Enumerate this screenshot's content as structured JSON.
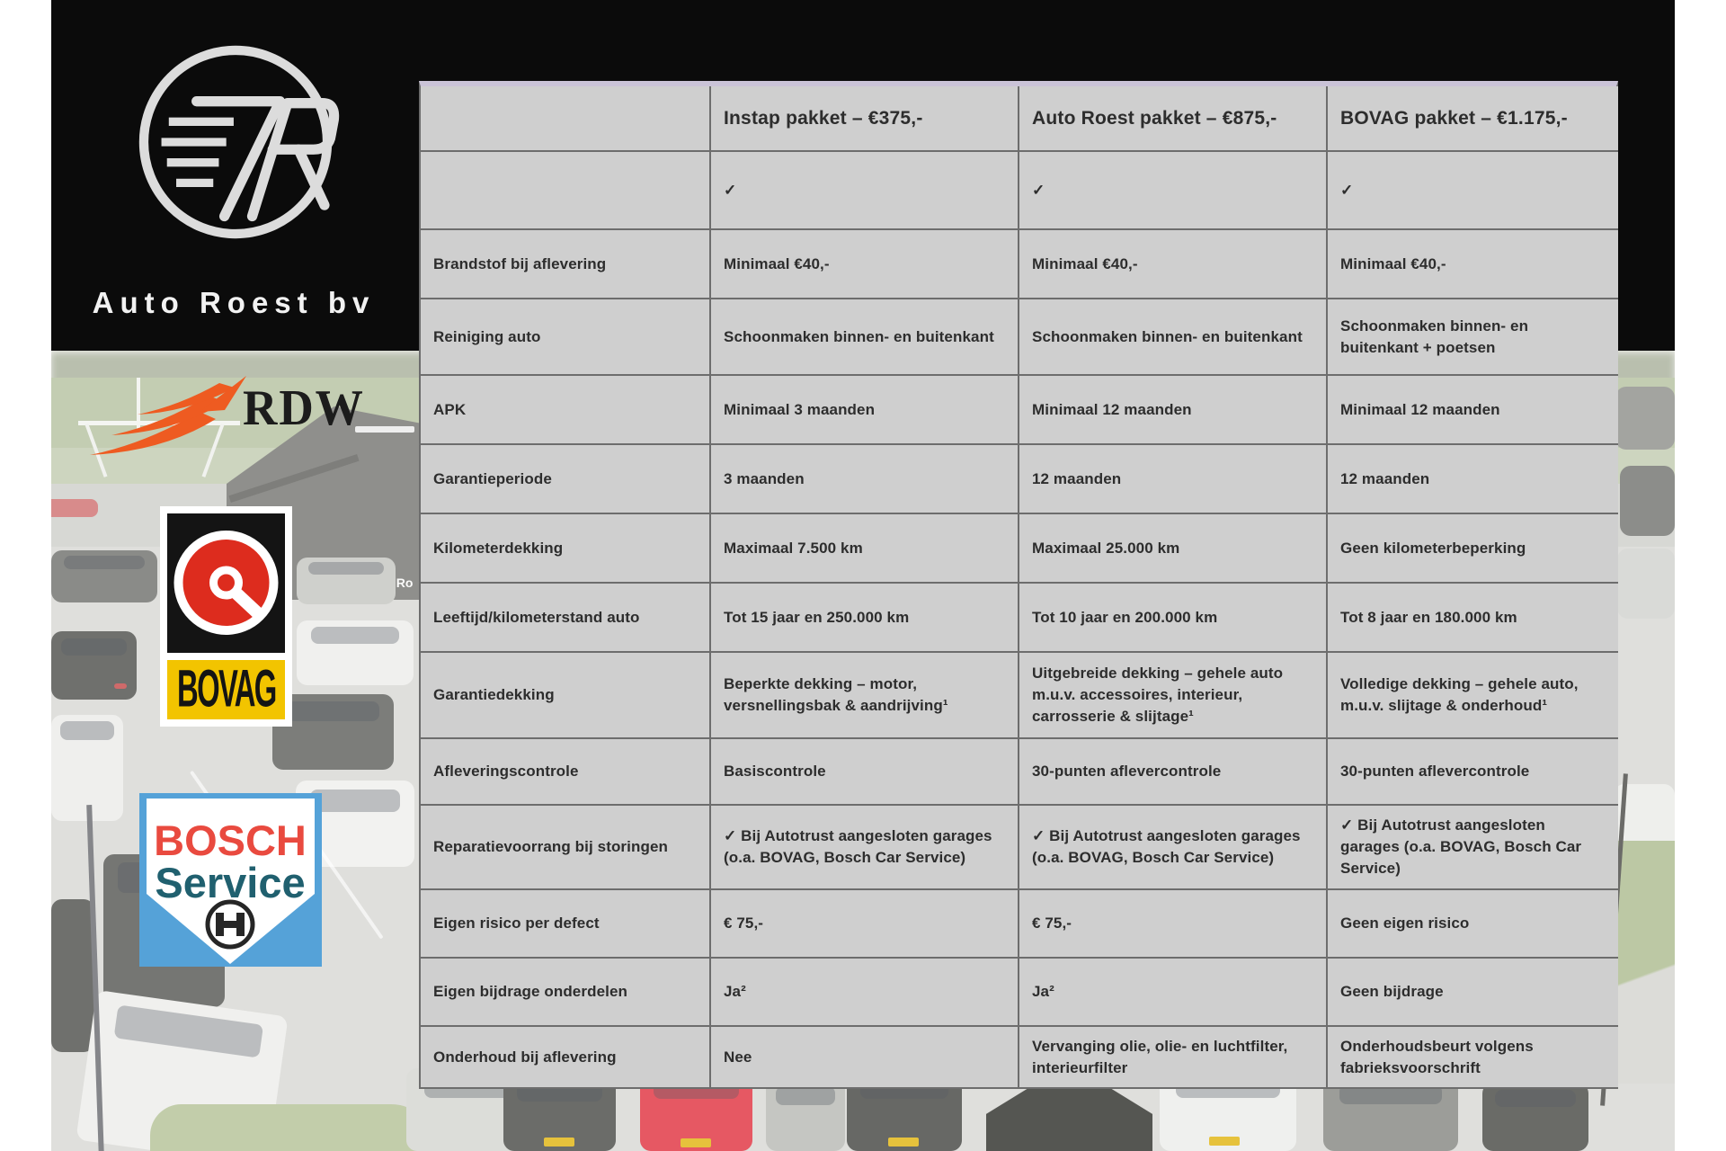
{
  "branding": {
    "auto_roest": {
      "name": "Auto Roest bv"
    },
    "rdw": {
      "label": "RDW",
      "orange": "#ee5b21"
    },
    "bovag": {
      "label": "BOVAG",
      "red": "#dd2c1e",
      "yellow": "#f2c400"
    },
    "bosch": {
      "line1": "BOSCH",
      "line2": "Service",
      "red": "#e94a3f",
      "teal": "#20606f",
      "blue": "#55a2d8"
    }
  },
  "background": {
    "building_sign": "Auto Ro"
  },
  "colors": {
    "table_cell_bg": "#cfcfcf",
    "table_border": "#6d6d6d",
    "table_top_tint": "#cac3d7",
    "table_text": "#2d2d2d",
    "masthead_black": "#0b0b0b"
  },
  "table": {
    "columns": [
      "",
      "Instap pakket – €375,-",
      "Auto Roest pakket – €875,-",
      "BOVAG pakket – €1.175,-"
    ],
    "rows": [
      {
        "label": "",
        "cells": [
          "✓",
          "✓",
          "✓"
        ]
      },
      {
        "label": "Brandstof bij aflevering",
        "cells": [
          "Minimaal €40,-",
          "Minimaal €40,-",
          "Minimaal €40,-"
        ]
      },
      {
        "label": "Reiniging auto",
        "cells": [
          "Schoonmaken binnen- en buitenkant",
          "Schoonmaken binnen- en buitenkant",
          "Schoonmaken binnen- en buitenkant + poetsen"
        ]
      },
      {
        "label": "APK",
        "cells": [
          "Minimaal 3 maanden",
          "Minimaal 12 maanden",
          "Minimaal 12 maanden"
        ]
      },
      {
        "label": "Garantieperiode",
        "cells": [
          "3 maanden",
          "12 maanden",
          "12 maanden"
        ]
      },
      {
        "label": "Kilometerdekking",
        "cells": [
          "Maximaal 7.500 km",
          "Maximaal 25.000 km",
          "Geen kilometerbeperking"
        ]
      },
      {
        "label": "Leeftijd/kilometerstand auto",
        "cells": [
          "Tot 15 jaar en 250.000 km",
          "Tot 10 jaar en 200.000 km",
          "Tot 8 jaar en 180.000 km"
        ]
      },
      {
        "label": "Garantiedekking",
        "cells": [
          "Beperkte dekking – motor, versnellingsbak & aandrijving¹",
          "Uitgebreide dekking – gehele auto m.u.v. accessoires, interieur, carrosserie & slijtage¹",
          "Volledige dekking – gehele auto, m.u.v. slijtage & onderhoud¹"
        ]
      },
      {
        "label": "Afleveringscontrole",
        "cells": [
          "Basiscontrole",
          "30-punten aflevercontrole",
          "30-punten aflevercontrole"
        ]
      },
      {
        "label": "Reparatievoorrang bij storingen",
        "cells": [
          "✓ Bij Autotrust aangesloten garages (o.a. BOVAG, Bosch Car Service)",
          "✓ Bij Autotrust aangesloten garages (o.a. BOVAG, Bosch Car Service)",
          "✓ Bij Autotrust aangesloten garages (o.a. BOVAG, Bosch Car Service)"
        ]
      },
      {
        "label": "Eigen risico per defect",
        "cells": [
          "€ 75,-",
          "€ 75,-",
          "Geen eigen risico"
        ]
      },
      {
        "label": "Eigen bijdrage onderdelen",
        "cells": [
          "Ja²",
          "Ja²",
          "Geen bijdrage"
        ]
      },
      {
        "label": "Onderhoud bij aflevering",
        "cells": [
          "Nee",
          "Vervanging olie, olie- en luchtfilter, interieurfilter",
          "Onderhoudsbeurt volgens fabrieksvoorschrift"
        ]
      }
    ]
  }
}
